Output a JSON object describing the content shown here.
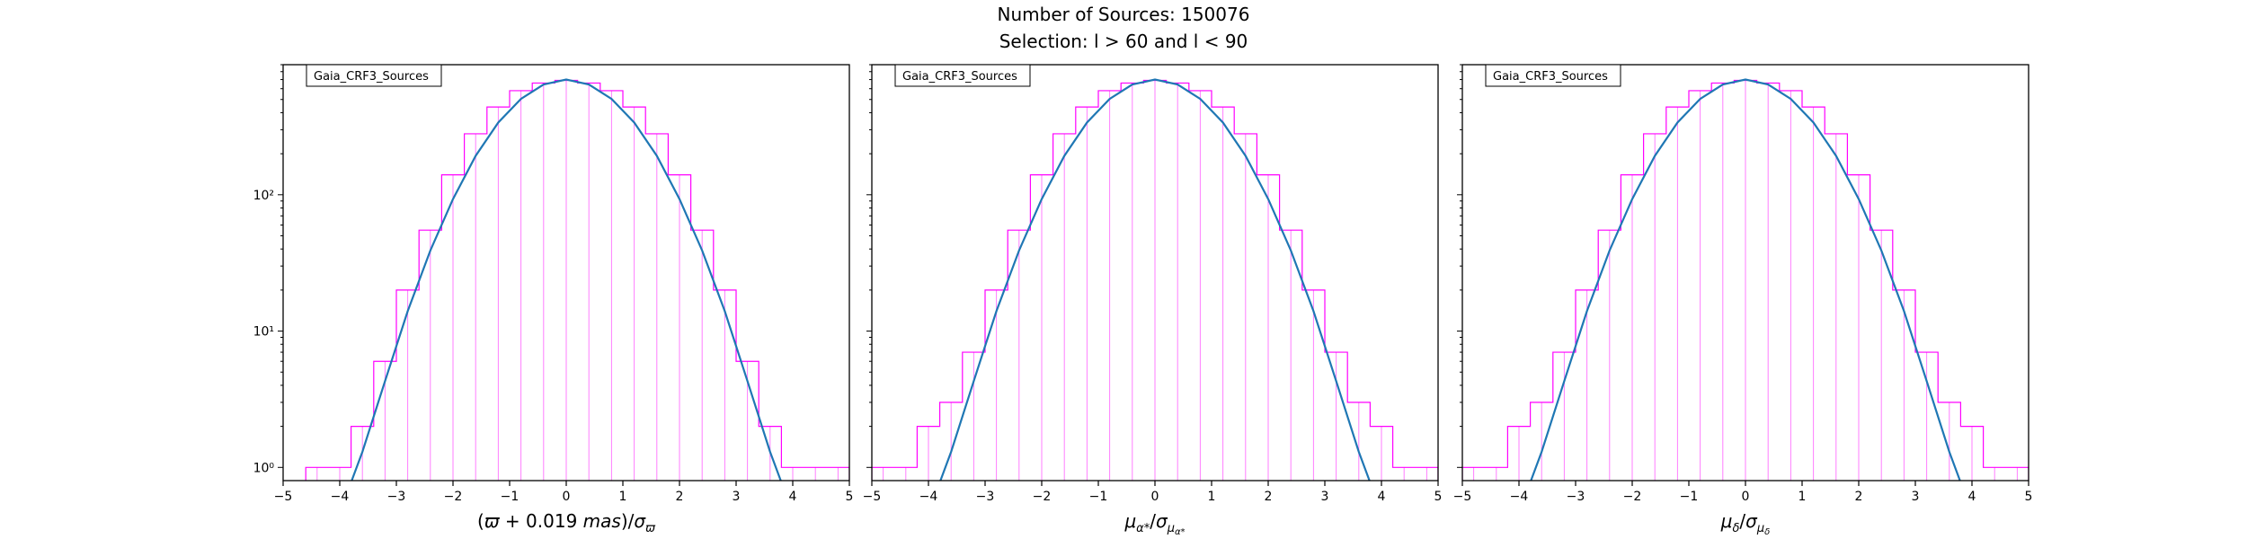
{
  "figure": {
    "title": "Number of Sources: 150076",
    "subtitle": "Selection: l > 60 and l < 90"
  },
  "colors": {
    "histogram": "#ff00ff",
    "fit": "#1f77b4",
    "axes": "#000000"
  },
  "chart_data": [
    {
      "type": "line",
      "legend": "Gaia_CRF3_Sources",
      "legend_position": "top-left",
      "xlabel": "(ϖ + 0.019 mas)/σϖ",
      "ylabel": "",
      "xlim": [
        -5,
        5
      ],
      "ylim": [
        0.8,
        900
      ],
      "yscale": "log",
      "xticks": [
        -5,
        -4,
        -3,
        -2,
        -1,
        0,
        1,
        2,
        3,
        4,
        5
      ],
      "yticks": [
        {
          "value": 1,
          "label": "10⁰"
        },
        {
          "value": 10,
          "label": "10¹"
        },
        {
          "value": 100,
          "label": "10²"
        }
      ],
      "grid": false,
      "series": [
        {
          "kind": "histogram",
          "x": [
            -4.4,
            -4.0,
            -3.6,
            -3.2,
            -2.8,
            -2.4,
            -2.0,
            -1.6,
            -1.2,
            -0.8,
            -0.4,
            0.0,
            0.4,
            0.8,
            1.2,
            1.6,
            2.0,
            2.4,
            2.8,
            3.2,
            3.6,
            4.0,
            4.4,
            4.8
          ],
          "y": [
            1,
            1,
            2,
            6,
            20,
            55,
            140,
            280,
            440,
            580,
            660,
            690,
            660,
            580,
            440,
            280,
            140,
            55,
            20,
            6,
            2,
            1,
            1,
            1
          ]
        },
        {
          "kind": "fit",
          "x": [
            -3.9,
            -3.6,
            -3.2,
            -2.8,
            -2.4,
            -2.0,
            -1.6,
            -1.2,
            -0.8,
            -0.4,
            0.0,
            0.4,
            0.8,
            1.2,
            1.6,
            2.0,
            2.4,
            2.8,
            3.2,
            3.6,
            3.9
          ],
          "y": [
            0.6,
            1.3,
            4.3,
            14,
            39,
            93,
            193,
            339,
            505,
            644,
            700,
            644,
            505,
            339,
            193,
            93,
            39,
            14,
            4.3,
            1.3,
            0.6
          ]
        }
      ]
    },
    {
      "type": "line",
      "legend": "Gaia_CRF3_Sources",
      "legend_position": "top-left",
      "xlabel": "μα*/σμα*",
      "ylabel": "",
      "xlim": [
        -5,
        5
      ],
      "ylim": [
        0.8,
        900
      ],
      "yscale": "log",
      "xticks": [
        -5,
        -4,
        -3,
        -2,
        -1,
        0,
        1,
        2,
        3,
        4,
        5
      ],
      "yticks": [
        {
          "value": 1,
          "label": ""
        },
        {
          "value": 10,
          "label": ""
        },
        {
          "value": 100,
          "label": ""
        }
      ],
      "grid": false,
      "series": [
        {
          "kind": "histogram",
          "x": [
            -4.8,
            -4.4,
            -4.0,
            -3.6,
            -3.2,
            -2.8,
            -2.4,
            -2.0,
            -1.6,
            -1.2,
            -0.8,
            -0.4,
            0.0,
            0.4,
            0.8,
            1.2,
            1.6,
            2.0,
            2.4,
            2.8,
            3.2,
            3.6,
            4.0,
            4.4,
            4.8
          ],
          "y": [
            1,
            1,
            2,
            3,
            7,
            20,
            55,
            140,
            280,
            440,
            580,
            660,
            690,
            660,
            580,
            440,
            280,
            140,
            55,
            20,
            7,
            3,
            2,
            1,
            1
          ]
        },
        {
          "kind": "fit",
          "x": [
            -3.9,
            -3.6,
            -3.2,
            -2.8,
            -2.4,
            -2.0,
            -1.6,
            -1.2,
            -0.8,
            -0.4,
            0.0,
            0.4,
            0.8,
            1.2,
            1.6,
            2.0,
            2.4,
            2.8,
            3.2,
            3.6,
            3.9
          ],
          "y": [
            0.6,
            1.3,
            4.3,
            14,
            39,
            93,
            193,
            339,
            505,
            644,
            700,
            644,
            505,
            339,
            193,
            93,
            39,
            14,
            4.3,
            1.3,
            0.6
          ]
        }
      ]
    },
    {
      "type": "line",
      "legend": "Gaia_CRF3_Sources",
      "legend_position": "top-left",
      "xlabel": "μδ/σμδ",
      "ylabel": "",
      "xlim": [
        -5,
        5
      ],
      "ylim": [
        0.8,
        900
      ],
      "yscale": "log",
      "xticks": [
        -5,
        -4,
        -3,
        -2,
        -1,
        0,
        1,
        2,
        3,
        4,
        5
      ],
      "yticks": [
        {
          "value": 1,
          "label": ""
        },
        {
          "value": 10,
          "label": ""
        },
        {
          "value": 100,
          "label": ""
        }
      ],
      "grid": false,
      "series": [
        {
          "kind": "histogram",
          "x": [
            -4.8,
            -4.4,
            -4.0,
            -3.6,
            -3.2,
            -2.8,
            -2.4,
            -2.0,
            -1.6,
            -1.2,
            -0.8,
            -0.4,
            0.0,
            0.4,
            0.8,
            1.2,
            1.6,
            2.0,
            2.4,
            2.8,
            3.2,
            3.6,
            4.0,
            4.4,
            4.8
          ],
          "y": [
            1,
            1,
            2,
            3,
            7,
            20,
            55,
            140,
            280,
            440,
            580,
            660,
            690,
            660,
            580,
            440,
            280,
            140,
            55,
            20,
            7,
            3,
            2,
            1,
            1
          ]
        },
        {
          "kind": "fit",
          "x": [
            -3.9,
            -3.6,
            -3.2,
            -2.8,
            -2.4,
            -2.0,
            -1.6,
            -1.2,
            -0.8,
            -0.4,
            0.0,
            0.4,
            0.8,
            1.2,
            1.6,
            2.0,
            2.4,
            2.8,
            3.2,
            3.6,
            3.9
          ],
          "y": [
            0.6,
            1.3,
            4.3,
            14,
            39,
            93,
            193,
            339,
            505,
            644,
            700,
            644,
            505,
            339,
            193,
            93,
            39,
            14,
            4.3,
            1.3,
            0.6
          ]
        }
      ]
    }
  ]
}
